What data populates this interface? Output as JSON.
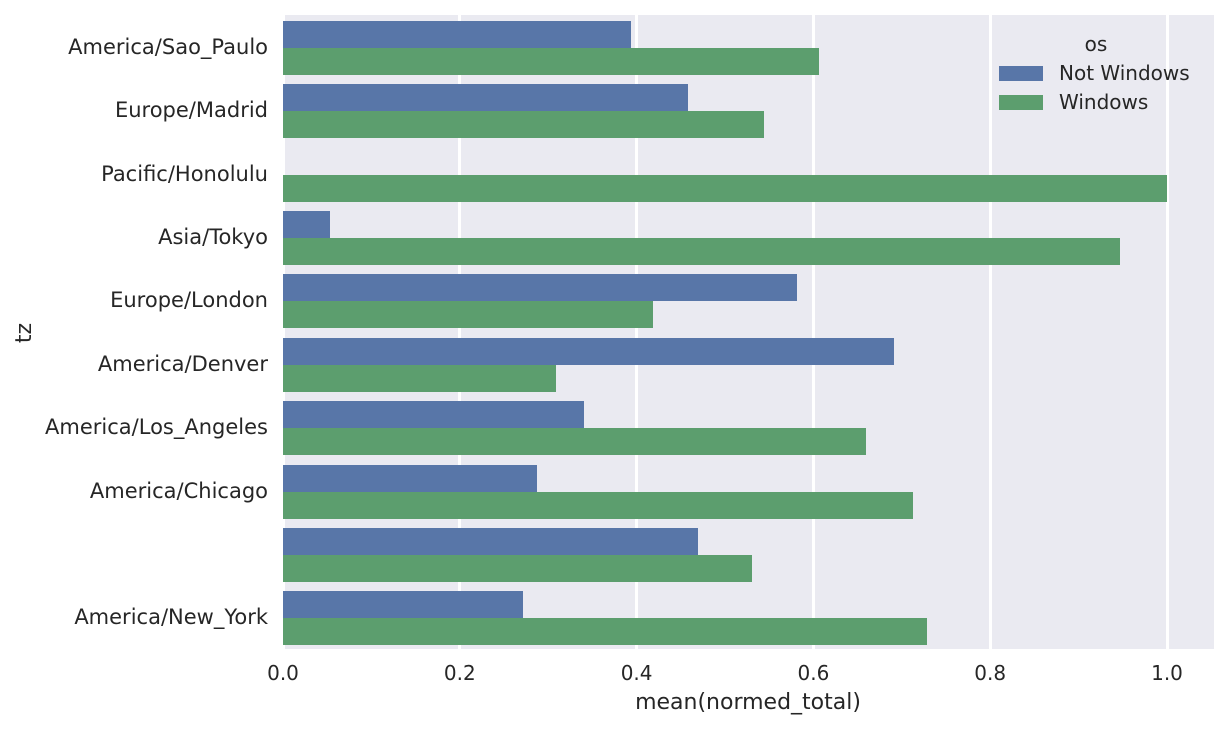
{
  "chart_data": {
    "type": "bar",
    "orientation": "horizontal",
    "xlabel": "mean(normed_total)",
    "ylabel": "tz",
    "xlim": [
      0.0,
      1.053
    ],
    "x_ticks": [
      0.0,
      0.2,
      0.4,
      0.6,
      0.8,
      1.0
    ],
    "x_tick_labels": [
      "0.0",
      "0.2",
      "0.4",
      "0.6",
      "0.8",
      "1.0"
    ],
    "categories": [
      "America/Sao_Paulo",
      "Europe/Madrid",
      "Pacific/Honolulu",
      "Asia/Tokyo",
      "Europe/London",
      "America/Denver",
      "America/Los_Angeles",
      "America/Chicago",
      "",
      "America/New_York"
    ],
    "series": [
      {
        "name": "Not Windows",
        "color": "#5876A8",
        "values": [
          0.394,
          0.458,
          0.0,
          0.053,
          0.582,
          0.691,
          0.34,
          0.287,
          0.47,
          0.271
        ]
      },
      {
        "name": "Windows",
        "color": "#5C9E6E",
        "values": [
          0.606,
          0.544,
          1.0,
          0.947,
          0.418,
          0.309,
          0.66,
          0.713,
          0.53,
          0.729
        ]
      }
    ],
    "legend": {
      "title": "os",
      "position": "top-right"
    },
    "grid": true,
    "style": {
      "plot_bg": "#EAEAF1",
      "grid_color": "#FFFFFF",
      "text_color": "#262626"
    }
  }
}
